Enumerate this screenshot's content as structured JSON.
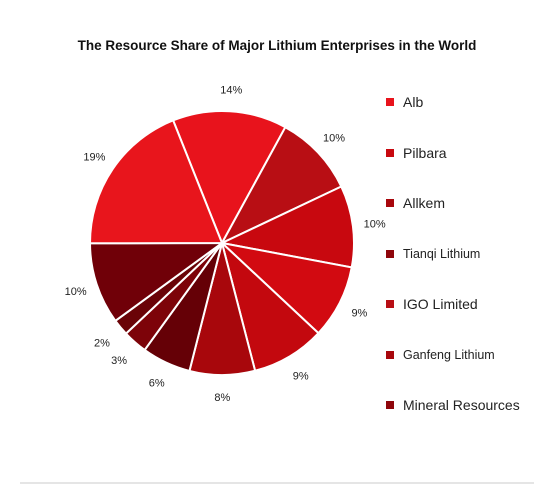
{
  "chart_data": {
    "type": "pie",
    "title": "The Resource Share of Major Lithium Enterprises in the World",
    "slices": [
      {
        "value": 14,
        "label": "14%",
        "color": "#e8131c"
      },
      {
        "value": 10,
        "label": "10%",
        "color": "#b80e14"
      },
      {
        "value": 10,
        "label": "10%",
        "color": "#c8080f"
      },
      {
        "value": 9,
        "label": "9%",
        "color": "#d20a11"
      },
      {
        "value": 9,
        "label": "9%",
        "color": "#c3080e"
      },
      {
        "value": 8,
        "label": "8%",
        "color": "#a8070c"
      },
      {
        "value": 6,
        "label": "6%",
        "color": "#650006"
      },
      {
        "value": 3,
        "label": "3%",
        "color": "#7d0309"
      },
      {
        "value": 2,
        "label": "2%",
        "color": "#6a0307"
      },
      {
        "value": 10,
        "label": "10%",
        "color": "#700008"
      },
      {
        "value": 19,
        "label": "19%",
        "color": "#e8151c"
      }
    ],
    "legend": [
      {
        "name": "Alb",
        "color": "#e8131c",
        "size": "lg"
      },
      {
        "name": "Pilbara",
        "color": "#c8080f",
        "size": "lg"
      },
      {
        "name": "Allkem",
        "color": "#a8070c",
        "size": "lg"
      },
      {
        "name": "Tianqi Lithium",
        "color": "#8f060b",
        "size": "sm"
      },
      {
        "name": "IGO Limited",
        "color": "#b80e14",
        "size": "lg"
      },
      {
        "name": "Ganfeng Lithium",
        "color": "#a8070c",
        "size": "sm"
      },
      {
        "name": "Mineral Resources",
        "color": "#8f060b",
        "size": "lg"
      }
    ],
    "legend_position": "right"
  }
}
